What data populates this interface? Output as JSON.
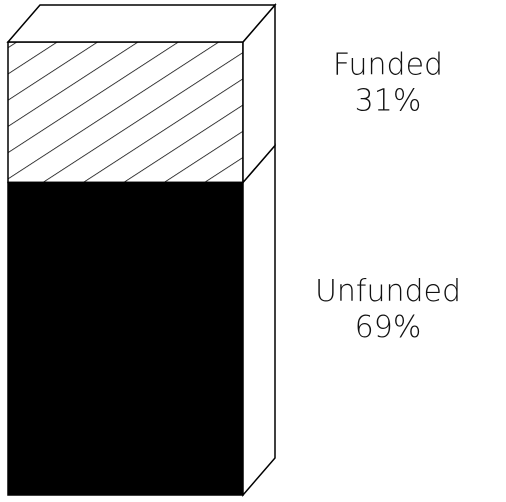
{
  "chart_data": {
    "type": "stacked-bar-3d",
    "series": [
      {
        "name": "Unfunded",
        "color": "#000000",
        "values": [
          69
        ],
        "value_labels": [
          "69%"
        ]
      },
      {
        "name": "Funded",
        "color": "#ffffff",
        "hatch": true,
        "values": [
          31
        ],
        "value_labels": [
          "31%"
        ]
      }
    ]
  }
}
